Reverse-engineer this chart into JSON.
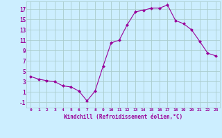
{
  "x": [
    0,
    1,
    2,
    3,
    4,
    5,
    6,
    7,
    8,
    9,
    10,
    11,
    12,
    13,
    14,
    15,
    16,
    17,
    18,
    19,
    20,
    21,
    22,
    23
  ],
  "y": [
    4.0,
    3.5,
    3.2,
    3.0,
    2.2,
    2.0,
    1.2,
    -0.7,
    1.2,
    6.0,
    10.5,
    11.0,
    14.0,
    16.5,
    16.8,
    17.2,
    17.2,
    17.8,
    14.8,
    14.2,
    13.0,
    10.8,
    8.5,
    8.0
  ],
  "line_color": "#990099",
  "marker": "D",
  "marker_size": 2,
  "bg_color": "#cceeff",
  "grid_color": "#aacccc",
  "xlabel": "Windchill (Refroidissement éolien,°C)",
  "xlabel_color": "#990099",
  "tick_color": "#990099",
  "ylim": [
    -2,
    18.5
  ],
  "xlim": [
    -0.5,
    23.5
  ],
  "yticks": [
    -1,
    1,
    3,
    5,
    7,
    9,
    11,
    13,
    15,
    17
  ],
  "xticks": [
    0,
    1,
    2,
    3,
    4,
    5,
    6,
    7,
    8,
    9,
    10,
    11,
    12,
    13,
    14,
    15,
    16,
    17,
    18,
    19,
    20,
    21,
    22,
    23
  ]
}
